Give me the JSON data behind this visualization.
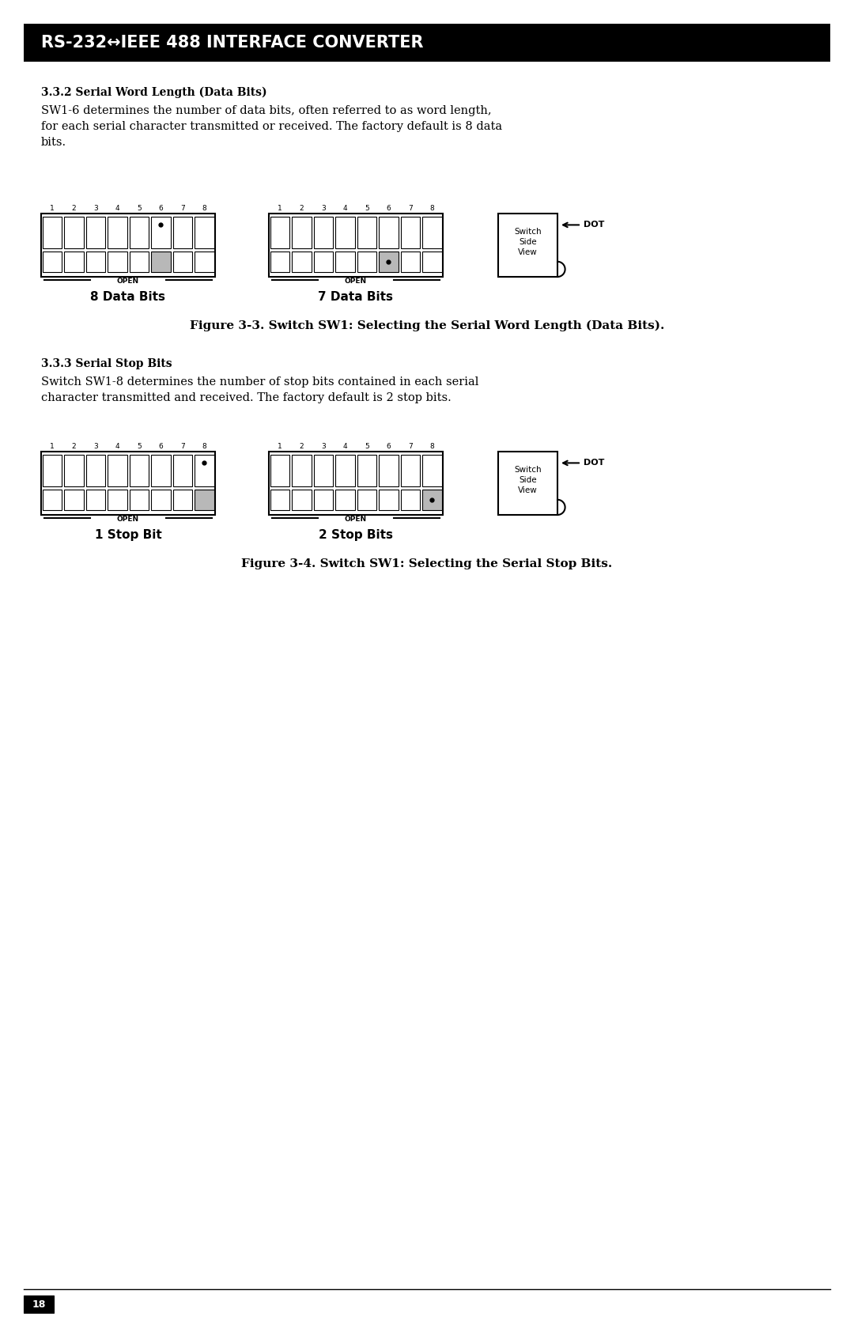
{
  "title_bar_text": "RS-232↔IEEE 488 INTERFACE CONVERTER",
  "section1_heading": "3.3.2 Serial Word Length (Data Bits)",
  "section1_body": "SW1-6 determines the number of data bits, often referred to as word length,\nfor each serial character transmitted or received. The factory default is 8 data\nbits.",
  "fig1_label1": "8 Data Bits",
  "fig1_label2": "7 Data Bits",
  "fig1_caption": "Figure 3-3. Switch SW1: Selecting the Serial Word Length (Data Bits).",
  "section2_heading": "3.3.3 Serial Stop Bits",
  "section2_body": "Switch SW1-8 determines the number of stop bits contained in each serial\ncharacter transmitted and received. The factory default is 2 stop bits.",
  "fig2_label1": "1 Stop Bit",
  "fig2_label2": "2 Stop Bits",
  "fig2_caption": "Figure 3-4. Switch SW1: Selecting the Serial Stop Bits.",
  "page_number": "18",
  "bg_color": "#ffffff",
  "title_bar_bg": "#000000",
  "title_bar_fg": "#ffffff",
  "switch_border": "#000000",
  "switch_fill_white": "#ffffff",
  "switch_fill_gray": "#b8b8b8",
  "switch_dot_color": "#000000"
}
